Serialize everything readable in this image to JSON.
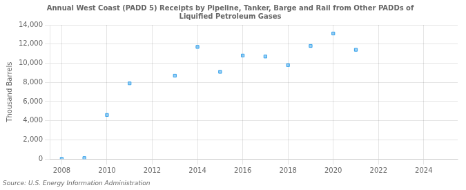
{
  "chart_data": {
    "type": "scatter",
    "title": "Annual West Coast (PADD 5) Receipts by Pipeline, Tanker, Barge and Rail from Other PADDs of\nLiquified Petroleum Gases",
    "ylabel": "Thousand Barrels",
    "source": "Source: U.S. Energy Information Administration",
    "x": [
      2008,
      2009,
      2010,
      2011,
      2013,
      2014,
      2015,
      2016,
      2017,
      2018,
      2019,
      2020,
      2021
    ],
    "values": [
      20,
      100,
      4600,
      7900,
      8700,
      11700,
      9100,
      10800,
      10700,
      9800,
      11800,
      13100,
      11400
    ],
    "marker": "square",
    "xlim": [
      2007.5,
      2025.5
    ],
    "ylim": [
      0,
      14000
    ],
    "xticks": [
      2008,
      2010,
      2012,
      2014,
      2016,
      2018,
      2020,
      2022,
      2024
    ],
    "yticks": [
      0,
      {
        "value": 2000,
        "label": "2,000"
      },
      {
        "value": 4000,
        "label": "4,000"
      },
      {
        "value": 6000,
        "label": "6,000"
      },
      {
        "value": 8000,
        "label": "8,000"
      },
      {
        "value": 10000,
        "label": "10,000"
      },
      {
        "value": 12000,
        "label": "12,000"
      },
      {
        "value": 14000,
        "label": "14,000"
      }
    ],
    "grid": true
  }
}
